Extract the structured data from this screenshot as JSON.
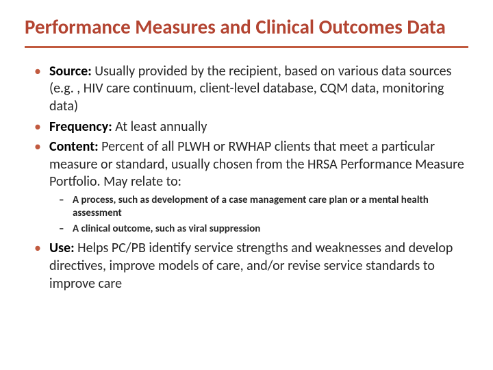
{
  "title": "Performance Measures and Clinical Outcomes Data",
  "colors": {
    "accent": "#c15a3f",
    "titleColor": "#b34431",
    "text": "#262626",
    "background": "#ffffff"
  },
  "bullets": [
    {
      "label": "Source:",
      "text": " Usually provided by the recipient, based on various data sources (e.g. , HIV care continuum, client-level database, CQM data, monitoring data)"
    },
    {
      "label": "Frequency:",
      "text": " At least annually"
    },
    {
      "label": "Content:",
      "text": " Percent of all PLWH or RWHAP clients that meet a particular measure or standard, usually chosen from the HRSA Performance Measure Portfolio. May relate to:",
      "sub": [
        "A process, such as development of a case management care plan or a mental health assessment",
        "A clinical outcome, such as viral suppression"
      ]
    },
    {
      "label": "Use:",
      "text": " Helps PC/PB identify service strengths and weaknesses and develop directives, improve models of care, and/or revise service standards to improve care"
    }
  ]
}
